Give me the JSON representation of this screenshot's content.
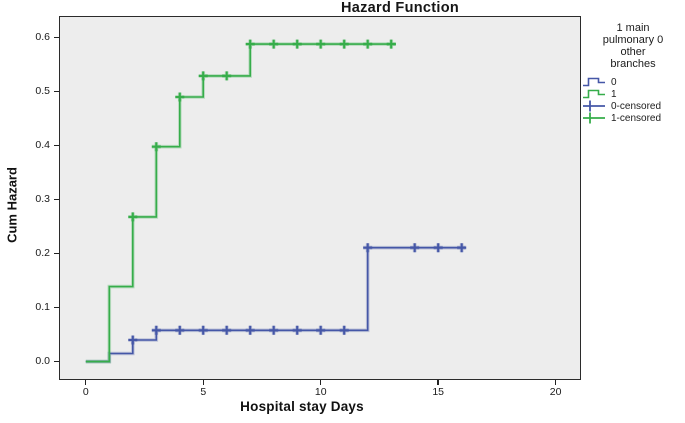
{
  "chart_data": {
    "type": "line",
    "subtype": "step-post-cumulative-hazard",
    "title": "Hazard Function",
    "xlabel": "Hospital stay Days",
    "ylabel": "Cum Hazard",
    "x_ticks": [
      0,
      5,
      10,
      15,
      20
    ],
    "y_ticks": [
      {
        "label": "0.0",
        "value": 0.0
      },
      {
        "label": "0.1",
        "value": 0.1
      },
      {
        "label": "0.2",
        "value": 0.2
      },
      {
        "label": "0.3",
        "value": 0.3
      },
      {
        "label": "0.4",
        "value": 0.4
      },
      {
        "label": "0.5",
        "value": 0.5
      },
      {
        "label": "0.6",
        "value": 0.6
      }
    ],
    "xlim": [
      -1.14,
      21.08
    ],
    "ylim": [
      -0.034,
      0.64
    ],
    "grid": false,
    "plot_background": "#ededed",
    "border_color": "#2b2b2b",
    "legend_position": "right",
    "legend": {
      "title_lines": [
        "1 main",
        "pulmonary 0",
        "other",
        "branches"
      ],
      "items": [
        {
          "label": "0",
          "glyph": "step-line",
          "color": "#4557a7"
        },
        {
          "label": "1",
          "glyph": "step-line",
          "color": "#36ad4a"
        },
        {
          "label": "0-censored",
          "glyph": "plus-mark",
          "color": "#4557a7"
        },
        {
          "label": "1-censored",
          "glyph": "plus-mark",
          "color": "#36ad4a"
        }
      ]
    },
    "series": [
      {
        "name": "0",
        "color": "#4557a7",
        "steps": [
          [
            0,
            0.0
          ],
          [
            1,
            0.015
          ],
          [
            2,
            0.04
          ],
          [
            3,
            0.058
          ],
          [
            12,
            0.211
          ]
        ],
        "end_x": 16.15,
        "censored": [
          [
            2,
            0.04
          ],
          [
            3,
            0.058
          ],
          [
            4,
            0.058
          ],
          [
            5,
            0.058
          ],
          [
            6,
            0.058
          ],
          [
            7,
            0.058
          ],
          [
            8,
            0.058
          ],
          [
            9,
            0.058
          ],
          [
            10,
            0.058
          ],
          [
            11,
            0.058
          ],
          [
            12,
            0.211
          ],
          [
            14,
            0.211
          ],
          [
            15,
            0.211
          ],
          [
            16,
            0.211
          ]
        ]
      },
      {
        "name": "1",
        "color": "#36ad4a",
        "steps": [
          [
            0,
            0.0
          ],
          [
            1,
            0.139
          ],
          [
            2,
            0.268
          ],
          [
            3,
            0.398
          ],
          [
            4,
            0.49
          ],
          [
            5,
            0.529
          ],
          [
            7,
            0.588
          ]
        ],
        "end_x": 13.2,
        "censored": [
          [
            2,
            0.268
          ],
          [
            3,
            0.398
          ],
          [
            4,
            0.49
          ],
          [
            5,
            0.529
          ],
          [
            6,
            0.529
          ],
          [
            7,
            0.588
          ],
          [
            8,
            0.588
          ],
          [
            9,
            0.588
          ],
          [
            10,
            0.588
          ],
          [
            11,
            0.588
          ],
          [
            12,
            0.588
          ],
          [
            13,
            0.588
          ]
        ]
      }
    ]
  }
}
